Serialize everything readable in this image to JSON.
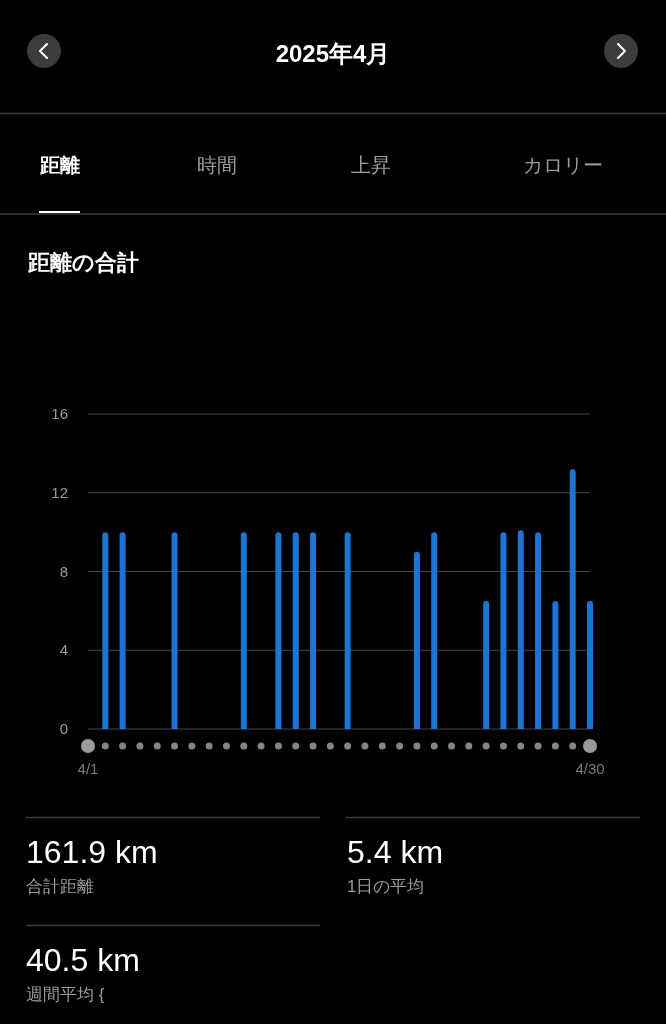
{
  "chart_data": {
    "type": "bar",
    "title": "2025年4月",
    "subtitle": "距離の合計",
    "categories": [
      "4/1",
      null,
      null,
      null,
      null,
      null,
      null,
      null,
      null,
      null,
      null,
      null,
      null,
      null,
      null,
      null,
      null,
      null,
      null,
      null,
      null,
      null,
      null,
      null,
      null,
      null,
      null,
      null,
      null,
      "4/30"
    ],
    "values": [
      null,
      10,
      10,
      null,
      null,
      10,
      null,
      null,
      null,
      10,
      null,
      10,
      10,
      10,
      null,
      10,
      null,
      null,
      null,
      9,
      10,
      null,
      null,
      6.5,
      10,
      10.1,
      10,
      6.5,
      13.2,
      6.5
    ],
    "color": "#1a76d6",
    "ylim": [
      0,
      16
    ],
    "yticks": [
      0,
      4,
      8,
      12,
      16
    ],
    "grid": "y",
    "annotations": [
      "距離",
      "時間",
      "上昇",
      "カロリー",
      "161.9 km",
      "合計距離",
      "5.4 km",
      "1日の平均",
      "40.5 km",
      "週間平均 {"
    ]
  }
}
